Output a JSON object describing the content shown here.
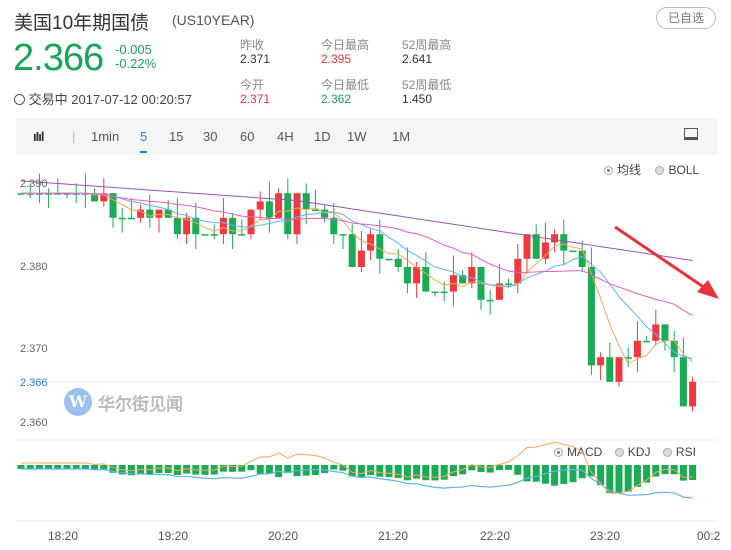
{
  "header": {
    "title": "美国10年期国债",
    "code": "(US10YEAR)",
    "fav_button": "已自选"
  },
  "quote": {
    "price": "2.366",
    "change": "-0.005",
    "change_pct": "-0.22%",
    "status": "交易中",
    "datetime": "2017-07-12 00:20:57"
  },
  "stats": [
    {
      "label": "昨收",
      "value": "2.371",
      "color": "neutral"
    },
    {
      "label": "今日最高",
      "value": "2.395",
      "color": "red"
    },
    {
      "label": "52周最高",
      "value": "2.641",
      "color": "neutral"
    },
    {
      "label": "今开",
      "value": "2.371",
      "color": "red"
    },
    {
      "label": "今日最低",
      "value": "2.362",
      "color": "green"
    },
    {
      "label": "52周最低",
      "value": "1.450",
      "color": "neutral"
    }
  ],
  "toolbar": {
    "periods": [
      "1min",
      "5",
      "15",
      "30",
      "60",
      "4H",
      "1D",
      "1W",
      "1M"
    ],
    "active": "5",
    "left_icon": "candlestick-icon",
    "right_icon": "screen-icon"
  },
  "main_legend": {
    "options": [
      "均线",
      "BOLL"
    ],
    "selected": "均线"
  },
  "sub_legend": {
    "options": [
      "MACD",
      "KDJ",
      "RSI"
    ],
    "selected": "MACD"
  },
  "watermark": "华尔街见闻",
  "y_axis": {
    "ticks": [
      "2.390",
      "2.380",
      "2.370",
      "2.360"
    ],
    "current": "2.366"
  },
  "x_axis": {
    "ticks": [
      "18:20",
      "19:20",
      "20:20",
      "21:20",
      "22:20",
      "23:20",
      "00:2"
    ]
  },
  "colors": {
    "up": "#f0393f",
    "down": "#1aab55",
    "ma5": "#f4a85c",
    "ma10": "#5eb5ea",
    "ma20": "#ea5cc8",
    "ma60": "#9a54b5",
    "current_line": "#2a7ad5"
  },
  "chart_data": {
    "type": "candlestick",
    "interval": "5min",
    "closes": [
      2.389,
      2.389,
      2.389,
      2.389,
      2.389,
      2.389,
      2.389,
      2.389,
      2.388,
      2.389,
      2.386,
      2.386,
      2.386,
      2.387,
      2.386,
      2.387,
      2.386,
      2.384,
      2.386,
      2.384,
      2.384,
      2.384,
      2.386,
      2.384,
      2.384,
      2.387,
      2.388,
      2.386,
      2.389,
      2.384,
      2.389,
      2.387,
      2.387,
      2.386,
      2.384,
      2.384,
      2.38,
      2.382,
      2.384,
      2.381,
      2.381,
      2.38,
      2.378,
      2.38,
      2.377,
      2.377,
      2.377,
      2.379,
      2.378,
      2.38,
      2.376,
      2.376,
      2.378,
      2.378,
      2.381,
      2.384,
      2.381,
      2.383,
      2.384,
      2.382,
      2.382,
      2.38,
      2.368,
      2.369,
      2.366,
      2.369,
      2.369,
      2.371,
      2.371,
      2.373,
      2.371,
      2.369,
      2.363,
      2.366
    ],
    "ylim": [
      2.3585,
      2.392
    ]
  }
}
